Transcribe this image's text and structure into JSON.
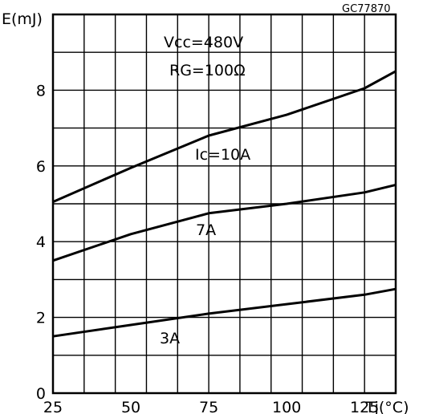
{
  "figure_id": "GC77870",
  "chart_data": {
    "type": "line",
    "ylabel": "E(mJ)",
    "xlabel": "Tj(°C)",
    "xlim": [
      25,
      135
    ],
    "ylim": [
      0,
      10
    ],
    "grid": true,
    "x_ticks": [
      25,
      50,
      75,
      100,
      125
    ],
    "y_ticks": [
      0,
      2,
      4,
      6,
      8
    ],
    "annotations": {
      "vcc": "Vcc=480V",
      "rg": "RG=100Ω"
    },
    "series": [
      {
        "name": "Ic=10A",
        "x": [
          25,
          50,
          75,
          100,
          125,
          135
        ],
        "y": [
          5.05,
          5.95,
          6.8,
          7.35,
          8.05,
          8.5
        ]
      },
      {
        "name": "7A",
        "x": [
          25,
          50,
          75,
          100,
          125,
          135
        ],
        "y": [
          3.5,
          4.2,
          4.75,
          5.0,
          5.3,
          5.5
        ]
      },
      {
        "name": "3A",
        "x": [
          25,
          50,
          75,
          100,
          125,
          135
        ],
        "y": [
          1.5,
          1.8,
          2.1,
          2.35,
          2.6,
          2.75
        ]
      }
    ]
  }
}
